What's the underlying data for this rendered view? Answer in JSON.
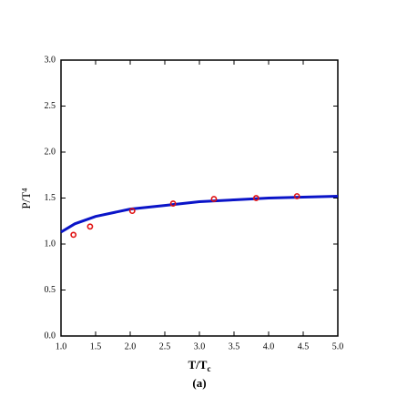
{
  "chart_data": {
    "type": "combo",
    "y_label": "P/T⁴",
    "x_label": {
      "text": "T/T",
      "subscript": "c"
    },
    "caption": "(a)",
    "xlim": [
      1,
      5
    ],
    "ylim": [
      0,
      3
    ],
    "xticks": [
      {
        "value": 1,
        "label": "1.0"
      },
      {
        "value": 1.5,
        "label": "1.5"
      },
      {
        "value": 2,
        "label": "2.0"
      },
      {
        "value": 2.5,
        "label": "2.5"
      },
      {
        "value": 3,
        "label": "3.0"
      },
      {
        "value": 3.5,
        "label": "3.5"
      },
      {
        "value": 4,
        "label": "4.0"
      },
      {
        "value": 4.5,
        "label": "4.5"
      },
      {
        "value": 5,
        "label": "5.0"
      }
    ],
    "yticks": [
      {
        "value": 0,
        "label": "0.0"
      },
      {
        "value": 0.5,
        "label": "0.5"
      },
      {
        "value": 1,
        "label": "1.0"
      },
      {
        "value": 1.5,
        "label": "1.5"
      },
      {
        "value": 2,
        "label": "2.0"
      },
      {
        "value": 2.5,
        "label": "2.5"
      },
      {
        "value": 3,
        "label": "3.0"
      }
    ],
    "series": [
      {
        "type": "line",
        "color": "#0a14c8",
        "x": [
          1.0,
          1.2,
          1.5,
          2.0,
          2.5,
          3.0,
          3.5,
          4.0,
          4.5,
          5.0
        ],
        "values": [
          1.13,
          1.22,
          1.3,
          1.38,
          1.42,
          1.46,
          1.48,
          1.5,
          1.51,
          1.52
        ]
      },
      {
        "type": "scatter",
        "color": "#e01010",
        "x": [
          1.18,
          1.42,
          2.03,
          2.62,
          3.21,
          3.82,
          4.41
        ],
        "values": [
          1.1,
          1.19,
          1.36,
          1.44,
          1.49,
          1.5,
          1.52
        ]
      }
    ]
  }
}
